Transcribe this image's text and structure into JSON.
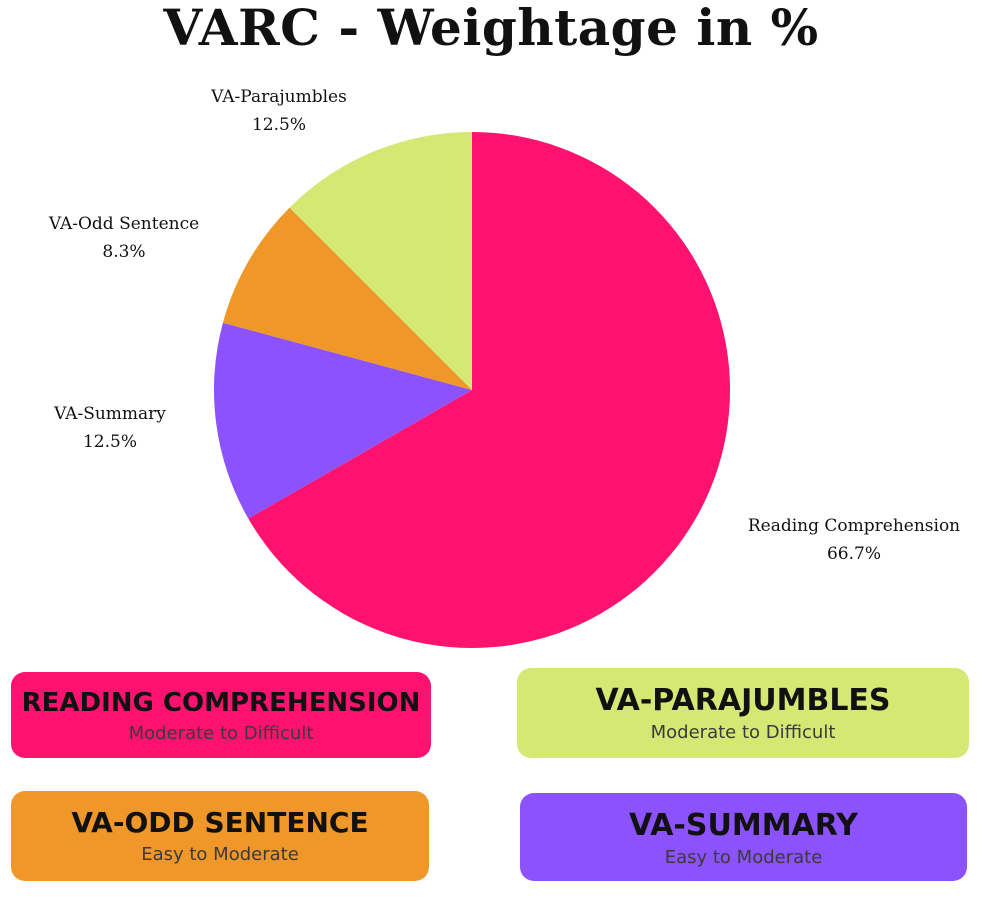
{
  "chart_data": {
    "type": "pie",
    "title": "VARC - Weightage in %",
    "slices": [
      {
        "name": "Reading Comprehension",
        "value": 66.7,
        "label": "66.7%",
        "color": "#fe1270"
      },
      {
        "name": "VA-Summary",
        "value": 12.5,
        "label": "12.5%",
        "color": "#8c52fe"
      },
      {
        "name": "VA-Odd Sentence",
        "value": 8.3,
        "label": "8.3%",
        "color": "#ef9829"
      },
      {
        "name": "VA-Parajumbles",
        "value": 12.5,
        "label": "12.5%",
        "color": "#d4e873"
      }
    ],
    "start_angle_deg": 0,
    "direction": "clockwise"
  },
  "legend_cards": [
    {
      "id": "rc",
      "title": "READING COMPREHENSION",
      "subtitle": "Moderate to Difficult",
      "color": "#fe1270"
    },
    {
      "id": "pj",
      "title": "VA-PARAJUMBLES",
      "subtitle": "Moderate to Difficult",
      "color": "#d4e873"
    },
    {
      "id": "os",
      "title": "VA-ODD SENTENCE",
      "subtitle": "Easy to Moderate",
      "color": "#ef9829"
    },
    {
      "id": "sm",
      "title": "VA-SUMMARY",
      "subtitle": "Easy to Moderate",
      "color": "#8c52fe"
    }
  ]
}
